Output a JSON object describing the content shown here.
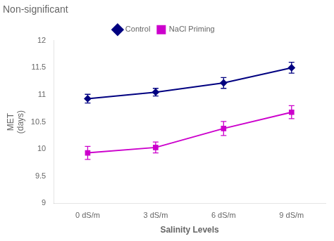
{
  "chart_data": {
    "type": "line",
    "title": "Non-significant",
    "x_label": "Salinity Levels",
    "y_label": "MET\n(days)",
    "categories": [
      "0 dS/m",
      "3 dS/m",
      "6 dS/m",
      "9 dS/m"
    ],
    "series": [
      {
        "name": "Control",
        "color": "#000080",
        "marker": "diamond",
        "values": [
          10.93,
          11.05,
          11.22,
          11.5
        ],
        "yerr": [
          0.08,
          0.07,
          0.1,
          0.1
        ]
      },
      {
        "name": "NaCl Priming",
        "color": "#CC00CC",
        "marker": "square",
        "values": [
          9.93,
          10.03,
          10.38,
          10.68
        ],
        "yerr": [
          0.12,
          0.1,
          0.13,
          0.12
        ]
      }
    ],
    "ylim": [
      9,
      12
    ],
    "yticks": [
      9,
      9.5,
      10,
      10.5,
      11,
      11.5,
      12
    ],
    "grid": false,
    "legend": "top"
  }
}
